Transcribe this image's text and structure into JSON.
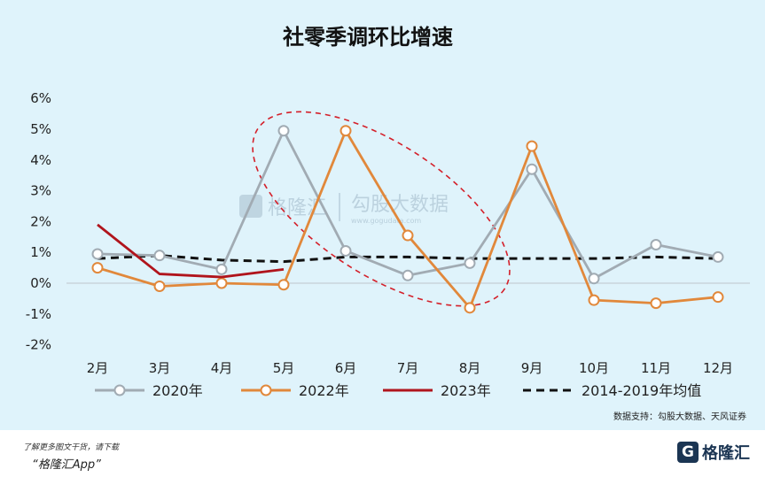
{
  "chart_data": {
    "type": "line",
    "title": "社零季调环比增速",
    "categories": [
      "2月",
      "3月",
      "4月",
      "5月",
      "6月",
      "7月",
      "8月",
      "9月",
      "10月",
      "11月",
      "12月"
    ],
    "y_ticks": [
      "6%",
      "5%",
      "4%",
      "3%",
      "2%",
      "1%",
      "0%",
      "-1%",
      "-2%"
    ],
    "ylim": [
      -2,
      6
    ],
    "ylabel": "",
    "xlabel": "",
    "grid": false,
    "legend_position": "bottom",
    "series": [
      {
        "name": "2020年",
        "color": "#a1abb3",
        "style": "solid-marker",
        "values": [
          0.95,
          0.9,
          0.45,
          4.95,
          1.05,
          0.25,
          0.65,
          3.7,
          0.15,
          1.25,
          0.85
        ]
      },
      {
        "name": "2022年",
        "color": "#e1883b",
        "style": "solid-marker",
        "values": [
          0.5,
          -0.1,
          0.0,
          -0.05,
          4.95,
          1.55,
          -0.8,
          4.45,
          -0.55,
          -0.65,
          -0.45
        ]
      },
      {
        "name": "2023年",
        "color": "#b0141c",
        "style": "solid",
        "values": [
          1.9,
          0.3,
          0.2,
          0.45,
          null,
          null,
          null,
          null,
          null,
          null,
          null
        ]
      },
      {
        "name": "2014-2019年均值",
        "color": "#111111",
        "style": "dashed",
        "values": [
          0.8,
          0.9,
          0.75,
          0.7,
          0.85,
          0.85,
          0.8,
          0.8,
          0.8,
          0.85,
          0.8
        ]
      }
    ],
    "annotations": [
      {
        "type": "ellipse",
        "color": "#d4202a",
        "style": "dashed",
        "around": [
          "5月",
          "8月"
        ]
      }
    ]
  },
  "source_text": "数据支持：勾股大数据、天风证券",
  "watermark": {
    "brand": "格隆汇",
    "secondary": "勾股大数据",
    "url": "www.gogudata.com"
  },
  "footer": {
    "note": "了解更多图文干货，请下载",
    "app": "“格隆汇App”",
    "logo": "格隆汇",
    "logo_mark": "G"
  }
}
